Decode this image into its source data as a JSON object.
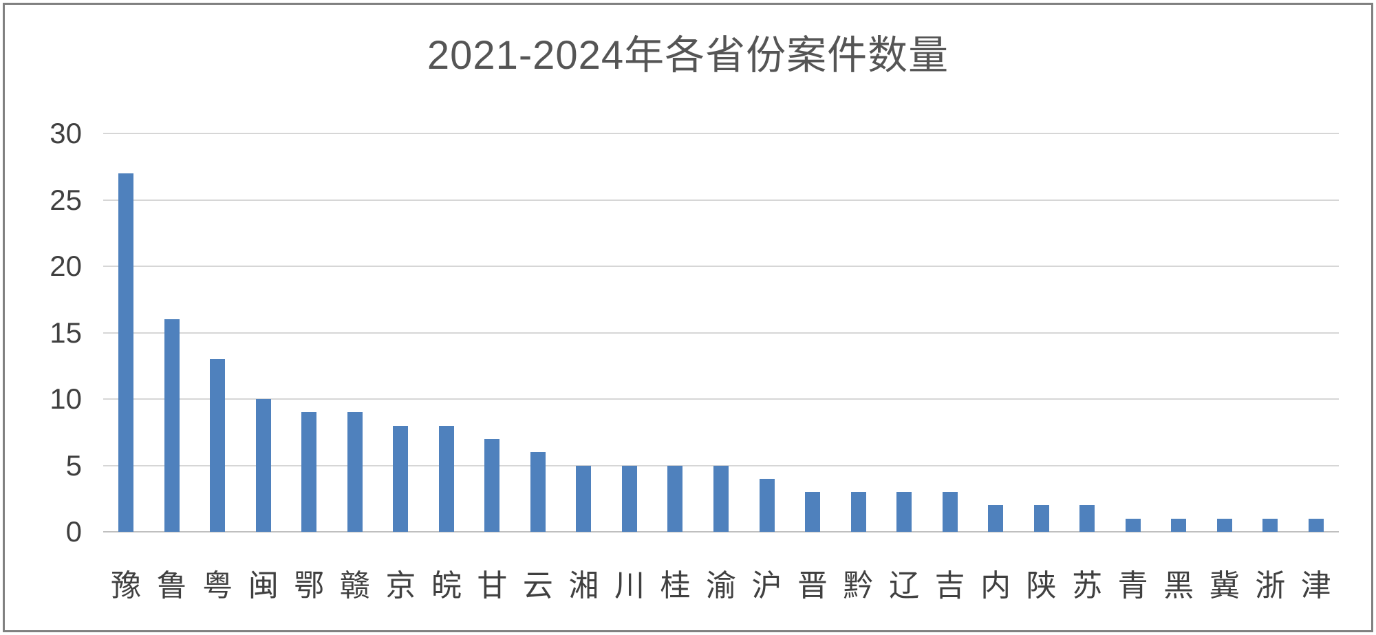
{
  "chart_data": {
    "type": "bar",
    "title": "2021-2024年各省份案件数量",
    "categories": [
      "豫",
      "鲁",
      "粤",
      "闽",
      "鄂",
      "赣",
      "京",
      "皖",
      "甘",
      "云",
      "湘",
      "川",
      "桂",
      "渝",
      "沪",
      "晋",
      "黔",
      "辽",
      "吉",
      "内",
      "陕",
      "苏",
      "青",
      "黑",
      "冀",
      "浙",
      "津"
    ],
    "values": [
      27,
      16,
      13,
      10,
      9,
      9,
      8,
      8,
      7,
      6,
      5,
      5,
      5,
      5,
      4,
      3,
      3,
      3,
      3,
      2,
      2,
      2,
      1,
      1,
      1,
      1,
      1
    ],
    "xlabel": "",
    "ylabel": "",
    "ylim": [
      0,
      30
    ],
    "yticks": [
      0,
      5,
      10,
      15,
      20,
      25,
      30
    ],
    "grid": true,
    "legend_position": "none",
    "colors": {
      "bar": "#4F81BD",
      "gridline": "#D6D6D6",
      "axis_line": "#BFBFBF",
      "tick_text": "#404040",
      "title_text": "#555555",
      "frame_border": "#808080",
      "background": "#FFFFFF"
    }
  }
}
